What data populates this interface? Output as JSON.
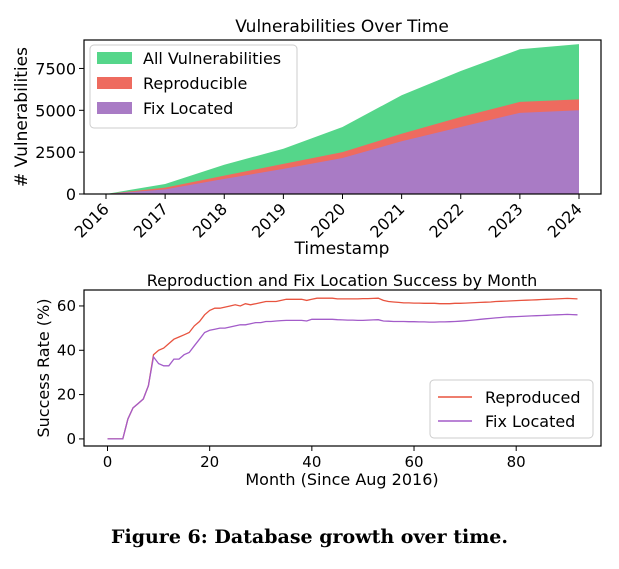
{
  "caption": "Figure 6: Database growth over time.",
  "chart_data": [
    {
      "type": "area",
      "title": "Vulnerabilities Over Time",
      "xlabel": "Timestamp",
      "ylabel": "# Vulnerabilities",
      "x_ticks": [
        "2016",
        "2017",
        "2018",
        "2019",
        "2020",
        "2021",
        "2022",
        "2023",
        "2024"
      ],
      "y_ticks": [
        0,
        2500,
        5000,
        7500
      ],
      "xlim": [
        2016,
        2024
      ],
      "ylim": [
        0,
        9200
      ],
      "grid": false,
      "legend": "top-left",
      "x": [
        2016,
        2017,
        2018,
        2019,
        2020,
        2021,
        2022,
        2023,
        2024
      ],
      "series": [
        {
          "name": "All Vulnerabilities",
          "color": "#55d68a",
          "values": [
            0,
            600,
            1750,
            2700,
            4000,
            5900,
            7350,
            8650,
            8950
          ]
        },
        {
          "name": "Reproducible",
          "color": "#ee6b5f",
          "values": [
            0,
            380,
            1100,
            1800,
            2500,
            3600,
            4600,
            5500,
            5650
          ]
        },
        {
          "name": "Fix Located",
          "color": "#a97bc5",
          "values": [
            0,
            280,
            900,
            1500,
            2150,
            3150,
            4000,
            4850,
            5000
          ]
        }
      ]
    },
    {
      "type": "line",
      "title": "Reproduction and Fix Location Success by Month",
      "xlabel": "Month (Since Aug 2016)",
      "ylabel": "Success Rate (%)",
      "x_ticks": [
        0,
        20,
        40,
        60,
        80
      ],
      "y_ticks": [
        0,
        20,
        40,
        60
      ],
      "xlim": [
        -4.6,
        96.6
      ],
      "ylim": [
        -3.2,
        67.2
      ],
      "grid": false,
      "legend": "bottom-right",
      "x": [
        0,
        1,
        2,
        3,
        4,
        5,
        6,
        7,
        8,
        9,
        10,
        11,
        12,
        13,
        14,
        15,
        16,
        17,
        18,
        19,
        20,
        21,
        22,
        23,
        24,
        25,
        26,
        27,
        28,
        29,
        30,
        31,
        32,
        33,
        34,
        35,
        36,
        37,
        38,
        39,
        40,
        41,
        42,
        43,
        44,
        45,
        46,
        47,
        48,
        49,
        50,
        51,
        52,
        53,
        54,
        55,
        56,
        57,
        58,
        59,
        60,
        61,
        62,
        63,
        64,
        65,
        66,
        67,
        68,
        69,
        70,
        71,
        72,
        73,
        74,
        75,
        76,
        77,
        78,
        79,
        80,
        81,
        82,
        83,
        84,
        85,
        86,
        87,
        88,
        89,
        90,
        91,
        92
      ],
      "series": [
        {
          "name": "Reproduced",
          "color": "#e8533f",
          "values": [
            0,
            0,
            0,
            0,
            9,
            14,
            16,
            18,
            24,
            38,
            40,
            41,
            43,
            45,
            46,
            47,
            48,
            51,
            53,
            56,
            58,
            59,
            59,
            59.5,
            60,
            60.5,
            60,
            61,
            60.5,
            61,
            61.5,
            62,
            62,
            62,
            62.5,
            63,
            63,
            63,
            63,
            62.5,
            63,
            63.5,
            63.5,
            63.5,
            63.5,
            63.2,
            63.2,
            63.2,
            63.2,
            63.2,
            63.3,
            63.3,
            63.4,
            63.5,
            62.5,
            62,
            61.8,
            61.6,
            61.4,
            61.4,
            61.3,
            61.3,
            61.2,
            61.2,
            61.2,
            61,
            61,
            61,
            61.2,
            61.2,
            61.3,
            61.4,
            61.5,
            61.6,
            61.7,
            61.8,
            62,
            62.1,
            62.2,
            62.3,
            62.4,
            62.5,
            62.6,
            62.7,
            62.8,
            62.9,
            63,
            63.1,
            63.2,
            63.3,
            63.4,
            63.3,
            63.2
          ]
        },
        {
          "name": "Fix Located",
          "color": "#a35cc9",
          "values": [
            0,
            0,
            0,
            0,
            9,
            14,
            16,
            18,
            24,
            37,
            34,
            33,
            33,
            36,
            36,
            38,
            39,
            42,
            45,
            48,
            49,
            49.5,
            50,
            50,
            50.5,
            51,
            51.5,
            51.5,
            52,
            52.5,
            52.5,
            53,
            53,
            53.2,
            53.4,
            53.5,
            53.5,
            53.5,
            53.5,
            53.2,
            54,
            54,
            54,
            54,
            54,
            53.8,
            53.7,
            53.6,
            53.6,
            53.5,
            53.5,
            53.6,
            53.7,
            53.8,
            53.2,
            53.1,
            53,
            53,
            53,
            52.9,
            52.9,
            52.8,
            52.8,
            52.7,
            52.7,
            52.8,
            52.8,
            52.9,
            53,
            53.1,
            53.3,
            53.5,
            53.7,
            54,
            54.2,
            54.4,
            54.6,
            54.8,
            55,
            55.1,
            55.2,
            55.3,
            55.4,
            55.5,
            55.6,
            55.7,
            55.8,
            55.9,
            56,
            56.1,
            56.2,
            56.1,
            56
          ]
        }
      ]
    }
  ]
}
